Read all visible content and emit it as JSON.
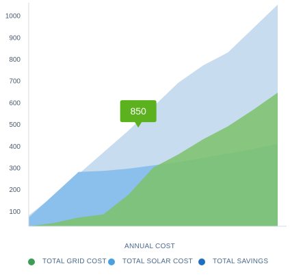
{
  "chart_data": {
    "type": "area",
    "xlabel": "ANNUAL COST",
    "ylabel": "",
    "y_ticks": [
      "100",
      "200",
      "300",
      "400",
      "500",
      "600",
      "700",
      "800",
      "900",
      "1000"
    ],
    "ylim": [
      30,
      1040
    ],
    "x": [
      0,
      1,
      2,
      3,
      4,
      5,
      6,
      7,
      8,
      9,
      10
    ],
    "xlim": [
      0,
      10
    ],
    "series": [
      {
        "name": "TOTAL SAVINGS",
        "color": "#c8dcef",
        "values": [
          80,
          170,
          270,
          370,
          470,
          580,
          690,
          770,
          830,
          940,
          1050
        ]
      },
      {
        "name": "TOTAL SOLAR COST",
        "color": "#8bbfec",
        "values": [
          70,
          175,
          280,
          285,
          295,
          310,
          325,
          345,
          365,
          385,
          410
        ]
      },
      {
        "name": "TOTAL GRID COST",
        "color": "#7cc26b",
        "values": [
          30,
          45,
          70,
          85,
          175,
          300,
          360,
          430,
          490,
          565,
          645
        ]
      }
    ],
    "tooltip": {
      "value": "850",
      "color": "#5cb21e",
      "x": 4.4,
      "y": 560
    },
    "grid": false
  },
  "legend": [
    {
      "label": "TOTAL GRID COST",
      "color": "#3a9d52"
    },
    {
      "label": "TOTAL SOLAR COST",
      "color": "#4aa1e0"
    },
    {
      "label": "TOTAL SAVINGS",
      "color": "#1e6fbf"
    }
  ]
}
